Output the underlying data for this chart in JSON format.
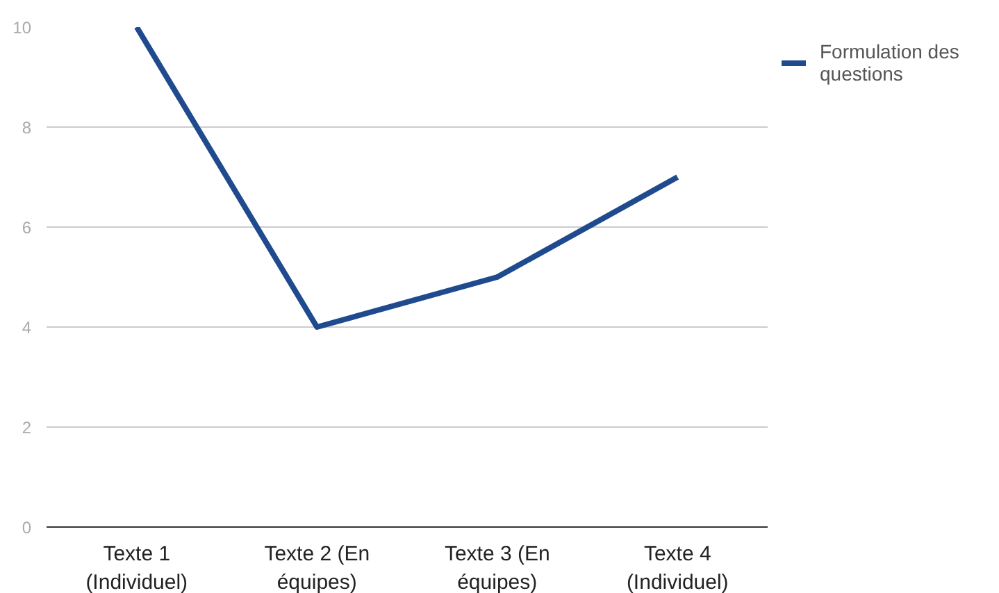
{
  "chart_data": {
    "type": "line",
    "categories": [
      "Texte 1 (Individuel)",
      "Texte 2 (En équipes)",
      "Texte 3 (En équipes)",
      "Texte 4 (Individuel)"
    ],
    "series": [
      {
        "name": "Formulation des questions",
        "color": "#1f4b8e",
        "values": [
          10,
          4,
          5,
          7
        ]
      }
    ],
    "ylim": [
      0,
      10
    ],
    "yticks": [
      0,
      2,
      4,
      6,
      8,
      10
    ],
    "grid": "y",
    "legend": "top right",
    "marker": "none",
    "line_style": "solid"
  }
}
